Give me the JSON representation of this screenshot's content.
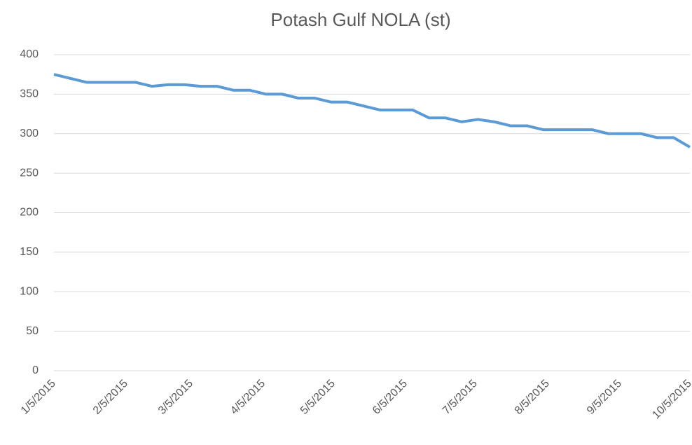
{
  "chart_data": {
    "type": "line",
    "title": "Potash Gulf NOLA (st)",
    "x": [
      "1/5/2015",
      "1/12/2015",
      "1/19/2015",
      "1/26/2015",
      "2/2/2015",
      "2/9/2015",
      "2/16/2015",
      "2/23/2015",
      "3/2/2015",
      "3/9/2015",
      "3/16/2015",
      "3/23/2015",
      "3/30/2015",
      "4/6/2015",
      "4/13/2015",
      "4/20/2015",
      "4/27/2015",
      "5/4/2015",
      "5/11/2015",
      "5/18/2015",
      "5/25/2015",
      "6/1/2015",
      "6/8/2015",
      "6/15/2015",
      "6/22/2015",
      "6/29/2015",
      "7/6/2015",
      "7/13/2015",
      "7/20/2015",
      "7/27/2015",
      "8/3/2015",
      "8/10/2015",
      "8/17/2015",
      "8/24/2015",
      "8/31/2015",
      "9/7/2015",
      "9/14/2015",
      "9/21/2015",
      "9/28/2015",
      "10/5/2015"
    ],
    "series": [
      {
        "name": "Potash Gulf NOLA (st)",
        "color": "#5b9bd5",
        "values": [
          375,
          370,
          365,
          365,
          365,
          365,
          360,
          362,
          362,
          360,
          360,
          355,
          355,
          350,
          350,
          345,
          345,
          340,
          340,
          335,
          330,
          330,
          330,
          320,
          320,
          315,
          318,
          315,
          310,
          310,
          305,
          305,
          305,
          305,
          300,
          300,
          300,
          295,
          295,
          283
        ]
      }
    ],
    "xlim": [
      "1/5/2015",
      "10/5/2015"
    ],
    "xticks": [
      "1/5/2015",
      "2/5/2015",
      "3/5/2015",
      "4/5/2015",
      "5/5/2015",
      "6/5/2015",
      "7/5/2015",
      "8/5/2015",
      "9/5/2015",
      "10/5/2015"
    ],
    "ylim": [
      0,
      400
    ],
    "yticks": [
      0,
      50,
      100,
      150,
      200,
      250,
      300,
      350,
      400
    ],
    "grid": true
  }
}
